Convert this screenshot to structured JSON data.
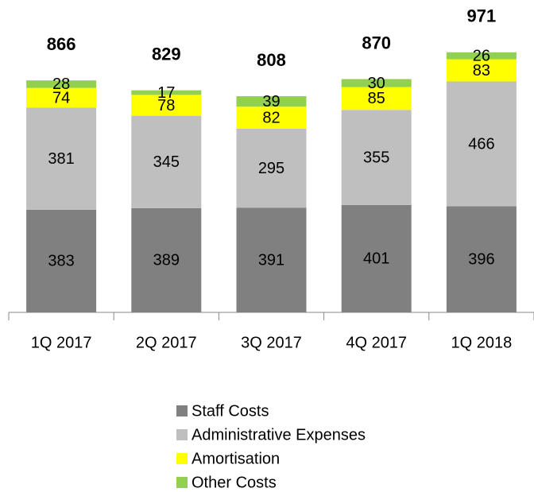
{
  "chart_data": {
    "type": "bar",
    "stacked": true,
    "categories": [
      "1Q 2017",
      "2Q 2017",
      "3Q 2017",
      "4Q 2017",
      "1Q 2018"
    ],
    "series": [
      {
        "name": "Staff Costs",
        "color": "#808080",
        "values": [
          383,
          389,
          391,
          401,
          396
        ]
      },
      {
        "name": "Administrative Expenses",
        "color": "#bfbfbf",
        "values": [
          381,
          345,
          295,
          355,
          466
        ]
      },
      {
        "name": "Amortisation",
        "color": "#ffff00",
        "values": [
          74,
          78,
          82,
          85,
          83
        ]
      },
      {
        "name": "Other Costs",
        "color": "#92d050",
        "values": [
          28,
          17,
          39,
          30,
          26
        ]
      }
    ],
    "totals": [
      866,
      829,
      808,
      870,
      971
    ],
    "ylim": [
      0,
      1000
    ]
  }
}
